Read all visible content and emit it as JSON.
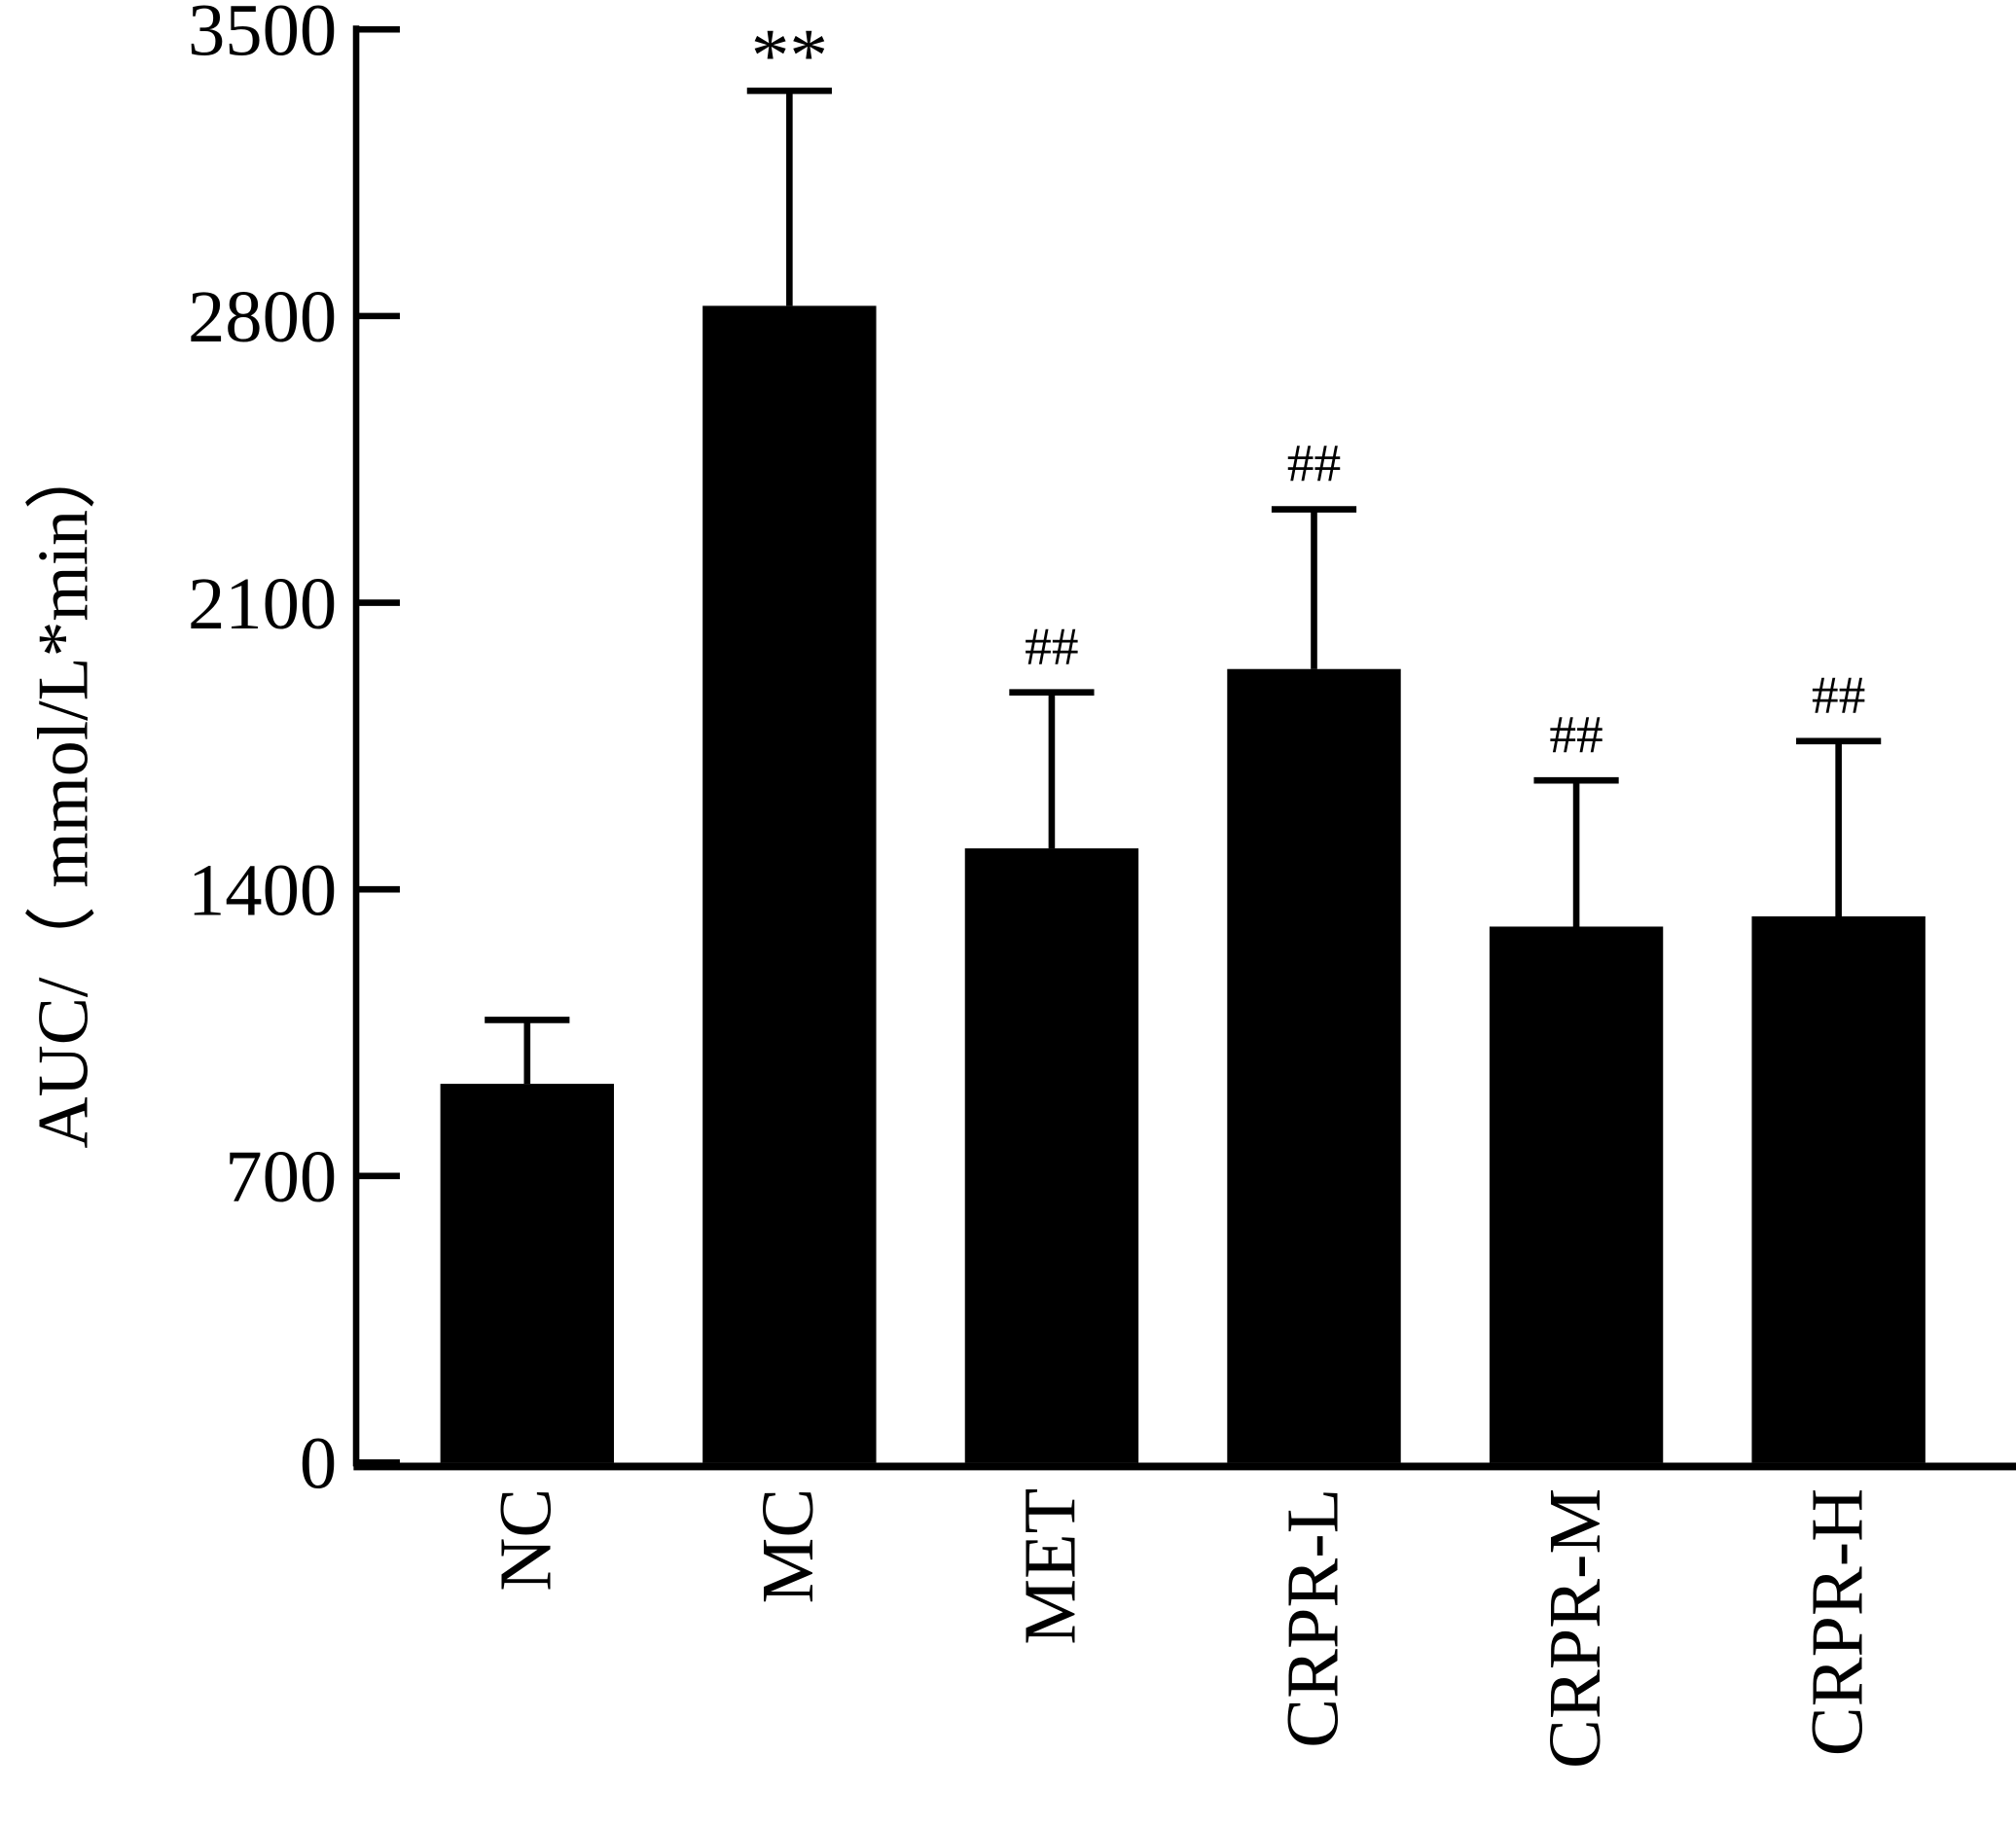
{
  "chart_data": {
    "type": "bar",
    "y_label": "AUC/（ mmol/L*min）",
    "categories": [
      "NC",
      "MC",
      "MET",
      "CRPR-L",
      "CRPR-M",
      "CRPR-H"
    ],
    "values": [
      925,
      2825,
      1500,
      1938,
      1309,
      1334
    ],
    "errors": [
      156,
      525,
      381,
      390,
      357,
      428
    ],
    "annotations": [
      null,
      "**",
      "##",
      "##",
      "##",
      "##"
    ],
    "color": "#000000",
    "ylim": [
      0,
      3500
    ],
    "yticks": [
      0,
      700,
      1400,
      2100,
      2800,
      3500
    ],
    "grid": false
  }
}
